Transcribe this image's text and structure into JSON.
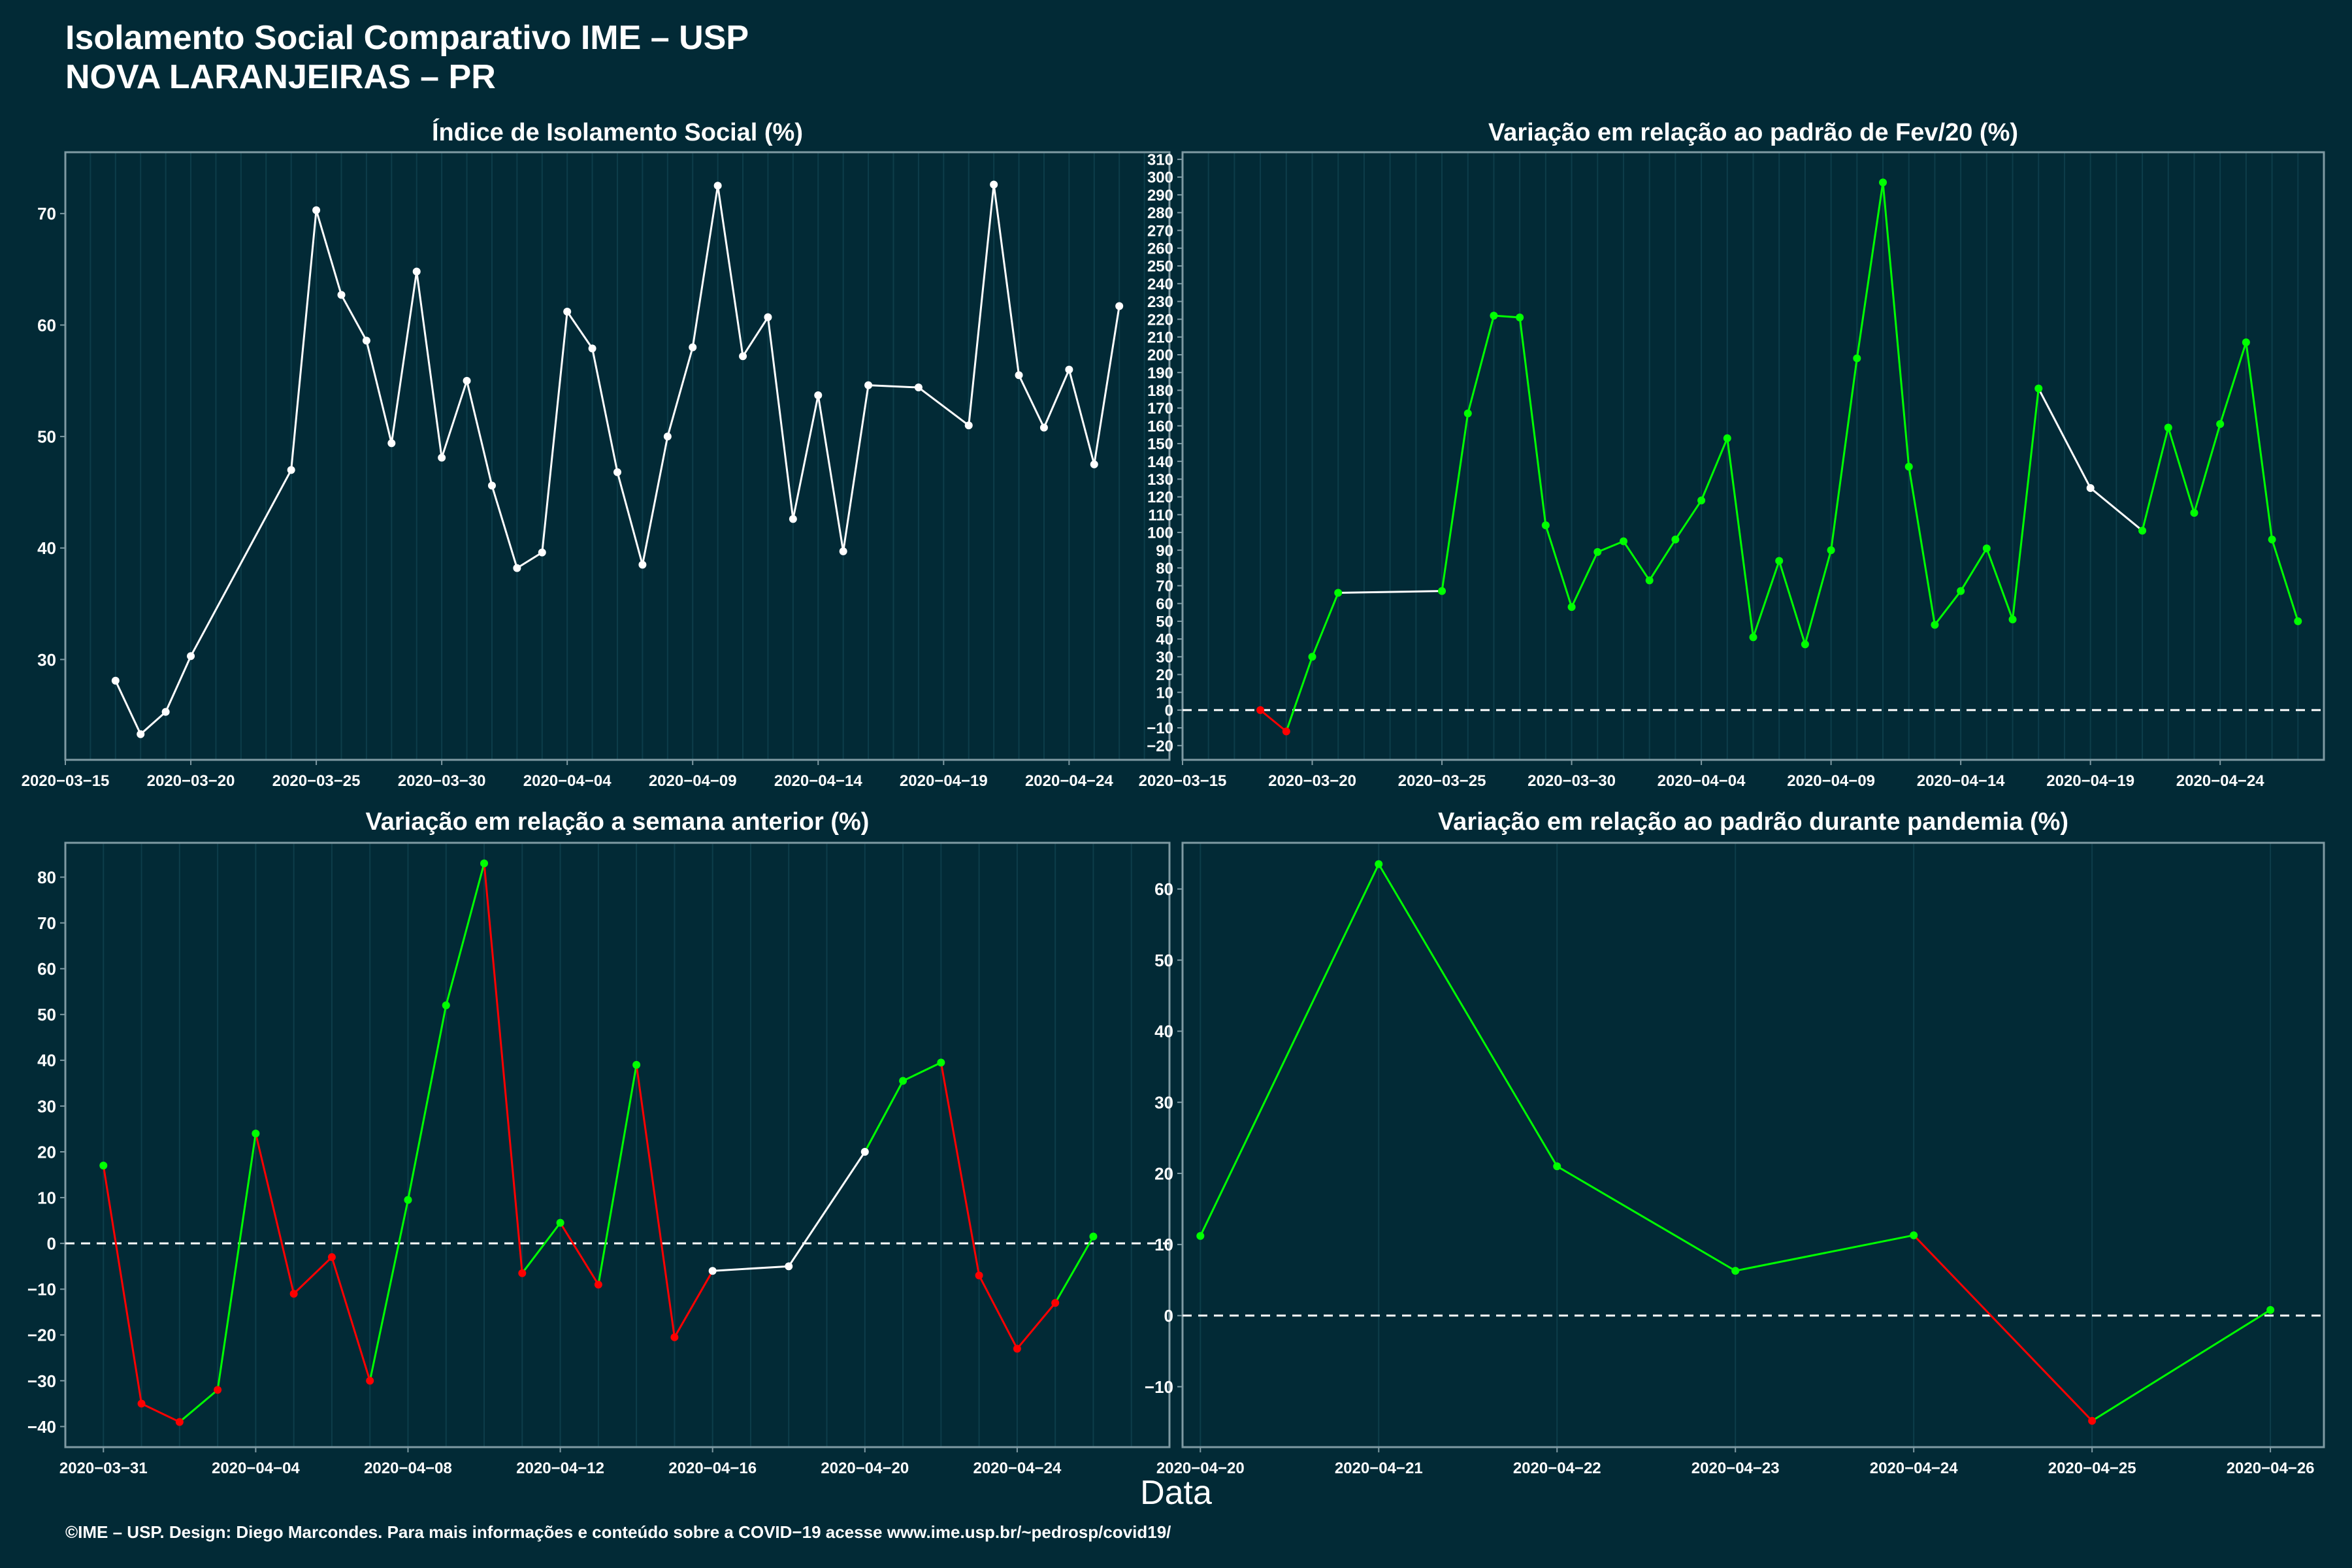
{
  "page": {
    "title_line1": "Isolamento Social Comparativo IME – USP",
    "title_line2": "NOVA LARANJEIRAS – PR",
    "xlabel": "Data",
    "footer": "©IME – USP. Design: Diego Marcondes. Para mais informações e conteúdo sobre a COVID−19 acesse www.ime.usp.br/~pedrosp/covid19/"
  },
  "colors": {
    "background": "#022a36",
    "axis": "#7f9aa3",
    "grid": "#0d3d4a",
    "white": "#ffffff",
    "green": "#00ff00",
    "red": "#ff0000"
  },
  "chart_data": [
    {
      "type": "line",
      "title": "Índice de Isolamento Social (%)",
      "x_type": "date",
      "xlim": [
        "2020-03-15",
        "2020-04-28"
      ],
      "ylim": [
        21,
        75.5
      ],
      "yticks": [
        30,
        40,
        50,
        60,
        70
      ],
      "xticks": [
        "2020-03-15",
        "2020-03-20",
        "2020-03-25",
        "2020-03-30",
        "2020-04-04",
        "2020-04-09",
        "2020-04-14",
        "2020-04-19",
        "2020-04-24"
      ],
      "zero_line": false,
      "series": [
        {
          "x": [
            "2020-03-17",
            "2020-03-18",
            "2020-03-19",
            "2020-03-20",
            "2020-03-24",
            "2020-03-25",
            "2020-03-26",
            "2020-03-27",
            "2020-03-28",
            "2020-03-29",
            "2020-03-30",
            "2020-03-31",
            "2020-04-01",
            "2020-04-02",
            "2020-04-03",
            "2020-04-04",
            "2020-04-05",
            "2020-04-06",
            "2020-04-07",
            "2020-04-08",
            "2020-04-09",
            "2020-04-10",
            "2020-04-11",
            "2020-04-12",
            "2020-04-13",
            "2020-04-14",
            "2020-04-15",
            "2020-04-16",
            "2020-04-18",
            "2020-04-20",
            "2020-04-21",
            "2020-04-22",
            "2020-04-23",
            "2020-04-24",
            "2020-04-25",
            "2020-04-26"
          ],
          "y": [
            28.1,
            23.3,
            25.3,
            30.3,
            47.0,
            70.3,
            62.7,
            58.6,
            49.4,
            64.8,
            48.1,
            55.0,
            45.6,
            38.2,
            39.6,
            61.2,
            57.9,
            46.8,
            38.5,
            50.0,
            58.0,
            72.5,
            57.2,
            60.7,
            42.6,
            53.7,
            39.7,
            54.6,
            54.4,
            51.0,
            72.6,
            55.5,
            50.8,
            56.0,
            47.5,
            61.7
          ],
          "segment_colors": [
            "white",
            "white",
            "white",
            "white",
            "white",
            "white",
            "white",
            "white",
            "white",
            "white",
            "white",
            "white",
            "white",
            "white",
            "white",
            "white",
            "white",
            "white",
            "white",
            "white",
            "white",
            "white",
            "white",
            "white",
            "white",
            "white",
            "white",
            "white",
            "white",
            "white",
            "white",
            "white",
            "white",
            "white",
            "white"
          ],
          "point_colors": [
            "white",
            "white",
            "white",
            "white",
            "white",
            "white",
            "white",
            "white",
            "white",
            "white",
            "white",
            "white",
            "white",
            "white",
            "white",
            "white",
            "white",
            "white",
            "white",
            "white",
            "white",
            "white",
            "white",
            "white",
            "white",
            "white",
            "white",
            "white",
            "white",
            "white",
            "white",
            "white",
            "white",
            "white",
            "white",
            "white"
          ]
        }
      ]
    },
    {
      "type": "line",
      "title": "Variação em relação ao padrão de Fev/20 (%)",
      "x_type": "date",
      "xlim": [
        "2020-03-15",
        "2020-04-28"
      ],
      "ylim": [
        -28,
        314
      ],
      "yticks": [
        -20,
        -10,
        0,
        10,
        20,
        30,
        40,
        50,
        60,
        70,
        80,
        90,
        100,
        110,
        120,
        130,
        140,
        150,
        160,
        170,
        180,
        190,
        200,
        210,
        220,
        230,
        240,
        250,
        260,
        270,
        280,
        290,
        300,
        310
      ],
      "xticks": [
        "2020-03-15",
        "2020-03-20",
        "2020-03-25",
        "2020-03-30",
        "2020-04-04",
        "2020-04-09",
        "2020-04-14",
        "2020-04-19",
        "2020-04-24"
      ],
      "zero_line": true,
      "series": [
        {
          "x": [
            "2020-03-18",
            "2020-03-19",
            "2020-03-20",
            "2020-03-21",
            "2020-03-25",
            "2020-03-26",
            "2020-03-27",
            "2020-03-28",
            "2020-03-29",
            "2020-03-30",
            "2020-03-31",
            "2020-04-01",
            "2020-04-02",
            "2020-04-03",
            "2020-04-04",
            "2020-04-05",
            "2020-04-06",
            "2020-04-07",
            "2020-04-08",
            "2020-04-09",
            "2020-04-10",
            "2020-04-11",
            "2020-04-12",
            "2020-04-13",
            "2020-04-14",
            "2020-04-15",
            "2020-04-16",
            "2020-04-17",
            "2020-04-19",
            "2020-04-21",
            "2020-04-22",
            "2020-04-23",
            "2020-04-24",
            "2020-04-25",
            "2020-04-26",
            "2020-04-27"
          ],
          "y": [
            0,
            -12,
            30,
            66,
            67,
            167,
            222,
            221,
            104,
            58,
            89,
            95,
            73,
            96,
            118,
            153,
            41,
            84,
            37,
            90,
            198,
            297,
            137,
            48,
            67,
            91,
            51,
            181,
            125,
            101,
            159,
            111,
            161,
            207,
            96,
            50
          ],
          "segment_colors": [
            "red",
            "green",
            "green",
            "white",
            "green",
            "green",
            "green",
            "green",
            "green",
            "green",
            "green",
            "green",
            "green",
            "green",
            "green",
            "green",
            "green",
            "green",
            "green",
            "green",
            "green",
            "green",
            "green",
            "green",
            "green",
            "green",
            "green",
            "white",
            "white",
            "green",
            "green",
            "green",
            "green",
            "green",
            "green"
          ],
          "point_colors": [
            "red",
            "red",
            "green",
            "green",
            "green",
            "green",
            "green",
            "green",
            "green",
            "green",
            "green",
            "green",
            "green",
            "green",
            "green",
            "green",
            "green",
            "green",
            "green",
            "green",
            "green",
            "green",
            "green",
            "green",
            "green",
            "green",
            "green",
            "green",
            "white",
            "green",
            "green",
            "green",
            "green",
            "green",
            "green",
            "green"
          ]
        }
      ]
    },
    {
      "type": "line",
      "title": "Variação em relação a semana anterior (%)",
      "x_type": "date",
      "xlim": [
        "2020-03-30",
        "2020-04-28"
      ],
      "ylim": [
        -44.5,
        87.5
      ],
      "yticks": [
        -40,
        -30,
        -20,
        -10,
        0,
        10,
        20,
        30,
        40,
        50,
        60,
        70,
        80
      ],
      "xticks": [
        "2020-03-31",
        "2020-04-04",
        "2020-04-08",
        "2020-04-12",
        "2020-04-16",
        "2020-04-20",
        "2020-04-24"
      ],
      "zero_line": true,
      "series": [
        {
          "x": [
            "2020-03-31",
            "2020-04-01",
            "2020-04-02",
            "2020-04-03",
            "2020-04-04",
            "2020-04-05",
            "2020-04-06",
            "2020-04-07",
            "2020-04-08",
            "2020-04-09",
            "2020-04-10",
            "2020-04-11",
            "2020-04-12",
            "2020-04-13",
            "2020-04-14",
            "2020-04-15",
            "2020-04-16",
            "2020-04-18",
            "2020-04-20",
            "2020-04-21",
            "2020-04-22",
            "2020-04-23",
            "2020-04-24",
            "2020-04-25",
            "2020-04-26"
          ],
          "y": [
            17,
            -35,
            -39,
            -32,
            24,
            -11,
            -3,
            -30,
            9.5,
            52,
            83,
            -6.5,
            4.5,
            -9,
            39,
            -20.5,
            -6,
            -5,
            20,
            35.5,
            39.5,
            -7,
            -23,
            -13,
            1.5
          ],
          "segment_colors": [
            "red",
            "red",
            "green",
            "green",
            "red",
            "red",
            "red",
            "green",
            "green",
            "green",
            "red",
            "green",
            "red",
            "green",
            "red",
            "red",
            "white",
            "white",
            "green",
            "green",
            "red",
            "red",
            "red",
            "green"
          ],
          "point_colors": [
            "green",
            "red",
            "red",
            "red",
            "green",
            "red",
            "red",
            "red",
            "green",
            "green",
            "green",
            "red",
            "green",
            "red",
            "green",
            "red",
            "white",
            "white",
            "white",
            "green",
            "green",
            "red",
            "red",
            "red",
            "green"
          ]
        }
      ]
    },
    {
      "type": "line",
      "title": "Variação em relação ao padrão durante pandemia (%)",
      "x_type": "date",
      "xlim": [
        "2020-04-19.9",
        "2020-04-26.3"
      ],
      "ylim": [
        -18.5,
        66.5
      ],
      "yticks": [
        -10,
        0,
        10,
        20,
        30,
        40,
        50,
        60
      ],
      "xticks": [
        "2020-04-20",
        "2020-04-21",
        "2020-04-22",
        "2020-04-23",
        "2020-04-24",
        "2020-04-25",
        "2020-04-26"
      ],
      "zero_line": true,
      "series": [
        {
          "x": [
            "2020-04-20",
            "2020-04-21",
            "2020-04-22",
            "2020-04-23",
            "2020-04-24",
            "2020-04-25",
            "2020-04-26"
          ],
          "y": [
            11.2,
            63.5,
            21.0,
            6.3,
            11.3,
            -14.8,
            0.8
          ],
          "segment_colors": [
            "green",
            "green",
            "green",
            "green",
            "red",
            "green"
          ],
          "point_colors": [
            "green",
            "green",
            "green",
            "green",
            "green",
            "red",
            "green"
          ]
        }
      ]
    }
  ]
}
